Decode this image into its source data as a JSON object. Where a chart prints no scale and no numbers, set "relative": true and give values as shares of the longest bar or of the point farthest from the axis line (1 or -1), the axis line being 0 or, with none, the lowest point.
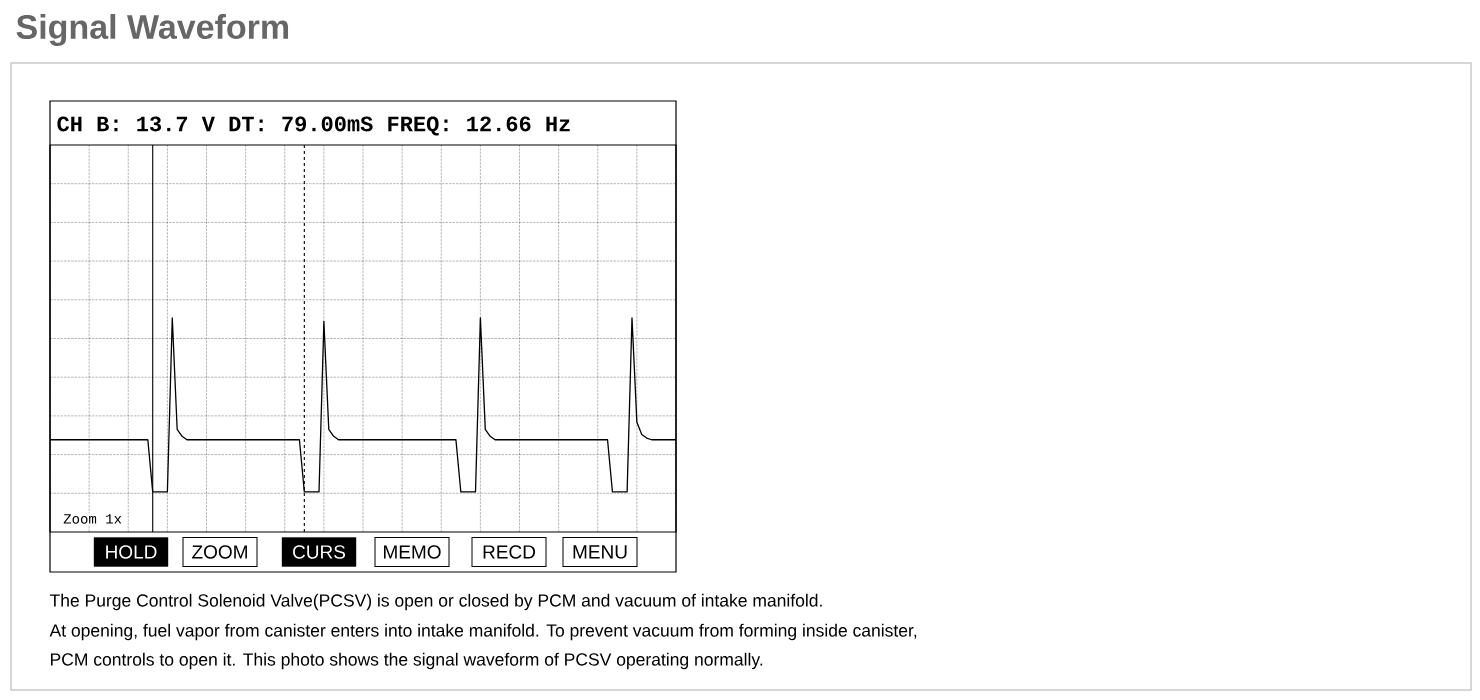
{
  "chart_data": {
    "type": "line",
    "title": "Signal Waveform",
    "subtitle": "CH B:   13.7 V DT: 79.00mS FREQ: 12.66 Hz",
    "relative": true,
    "grid": true,
    "color": "#000000",
    "line_style": "solid",
    "categories": [
      null,
      null,
      null,
      null,
      null,
      null,
      null,
      null,
      null,
      null,
      null,
      null,
      null,
      null,
      null,
      null,
      null,
      null,
      null,
      null,
      null,
      null,
      null,
      null,
      null,
      null,
      null,
      null,
      null,
      null,
      null,
      null,
      null,
      null,
      null,
      null,
      null,
      null,
      null,
      null,
      null,
      null,
      null,
      null,
      null,
      null,
      null,
      null,
      null,
      null,
      null,
      null,
      null,
      null,
      null,
      null,
      null,
      null,
      null,
      null,
      null,
      null,
      null,
      null,
      null,
      null,
      null,
      null,
      null,
      null,
      null,
      null,
      null,
      null,
      null,
      null,
      null,
      null,
      null,
      null,
      null,
      null,
      null,
      null,
      null,
      null,
      null,
      null,
      null,
      null,
      null,
      null,
      null,
      null,
      null,
      null,
      null,
      null,
      null,
      null,
      null,
      null,
      null,
      null,
      null,
      null,
      null,
      null,
      null,
      null,
      null,
      null,
      null,
      null,
      null,
      null,
      null,
      null,
      null,
      null,
      null,
      null,
      null,
      null,
      null,
      null,
      null,
      null,
      null
    ],
    "values": [
      0.3,
      0.3,
      0.3,
      0.3,
      0.3,
      0.3,
      0.3,
      0.3,
      0.3,
      0.3,
      0.3,
      0.3,
      0.3,
      0.3,
      0.3,
      0.3,
      0.3,
      0.3,
      0.3,
      0.3,
      0.3,
      0,
      0,
      0,
      0,
      1.0,
      0.36,
      0.32,
      0.3,
      0.3,
      0.3,
      0.3,
      0.3,
      0.3,
      0.3,
      0.3,
      0.3,
      0.3,
      0.3,
      0.3,
      0.3,
      0.3,
      0.3,
      0.3,
      0.3,
      0.3,
      0.3,
      0.3,
      0.3,
      0.3,
      0.3,
      0.3,
      0,
      0,
      0,
      0,
      0.98,
      0.36,
      0.32,
      0.3,
      0.3,
      0.3,
      0.3,
      0.3,
      0.3,
      0.3,
      0.3,
      0.3,
      0.3,
      0.3,
      0.3,
      0.3,
      0.3,
      0.3,
      0.3,
      0.3,
      0.3,
      0.3,
      0.3,
      0.3,
      0.3,
      0.3,
      0.3,
      0.3,
      0,
      0,
      0,
      0,
      1.0,
      0.36,
      0.32,
      0.3,
      0.3,
      0.3,
      0.3,
      0.3,
      0.3,
      0.3,
      0.3,
      0.3,
      0.3,
      0.3,
      0.3,
      0.3,
      0.3,
      0.3,
      0.3,
      0.3,
      0.3,
      0.3,
      0.3,
      0.3,
      0.3,
      0.3,
      0.3,
      0,
      0,
      0,
      0,
      1.0,
      0.4,
      0.33,
      0.31,
      0.3,
      0.3,
      0.3,
      0.3,
      0.3,
      0.3
    ],
    "annotations": [
      "Zoom 1x",
      "HOLD",
      "ZOOM",
      "CURS",
      "MEMO",
      "RECD",
      "MENU",
      "The Purge Control Solenoid Valve(PCSV) is open or closed by PCM and vacuum of intake manifold.",
      "At opening, fuel vapor from canister enters into intake manifold. To prevent vacuum from forming inside canister,",
      "PCM controls to open it. This photo shows the signal waveform of PCSV operating normally."
    ]
  }
}
